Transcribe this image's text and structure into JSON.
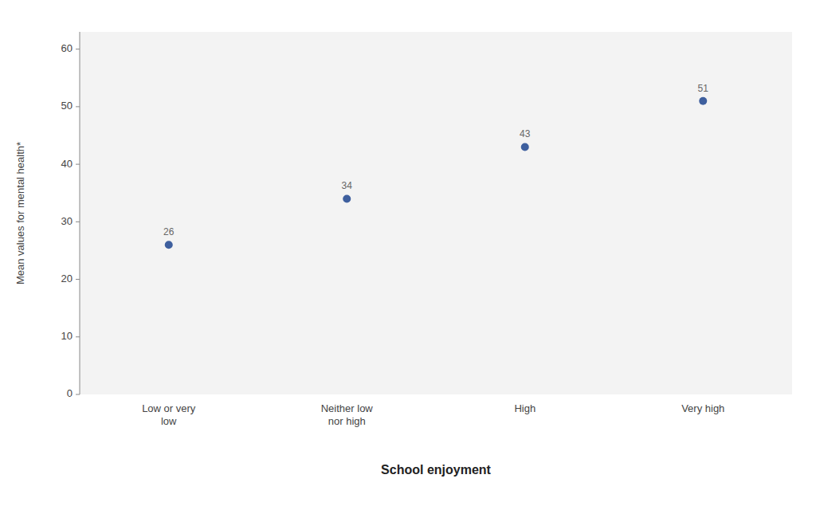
{
  "chart_data": {
    "type": "scatter",
    "categories": [
      "Low or very\nlow",
      "Neither low\nnor high",
      "High",
      "Very high"
    ],
    "values": [
      26,
      34,
      43,
      51
    ],
    "color": "#3E5F9E",
    "xlabel": "School enjoyment",
    "ylabel": "Mean values for mental health*",
    "ylim": [
      0,
      63
    ],
    "yticks": [
      0,
      10,
      20,
      30,
      40,
      50,
      60
    ],
    "grid": false,
    "data_labels": true
  }
}
